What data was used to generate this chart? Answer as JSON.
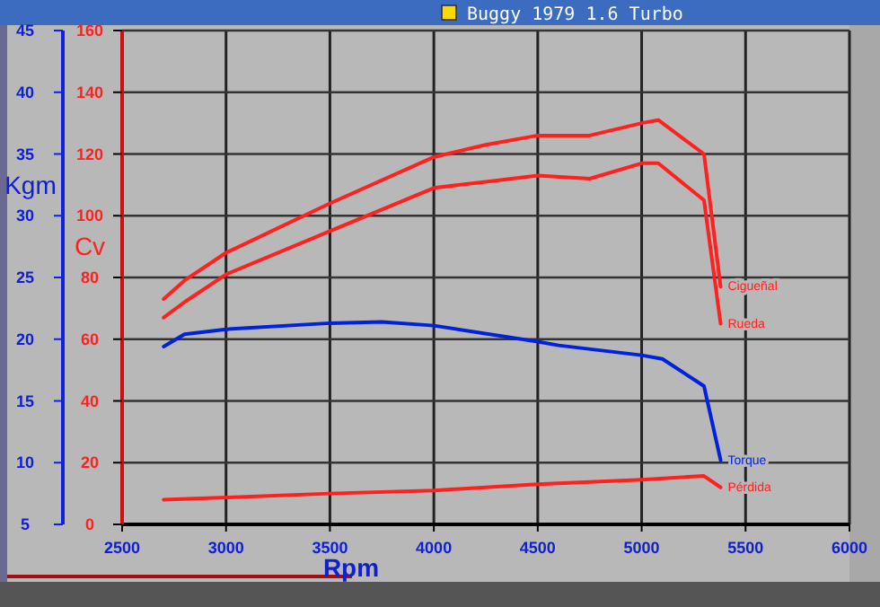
{
  "chart_data": {
    "type": "line",
    "title": "Buggy 1979 1.6 Turbo",
    "xlabel": "Rpm",
    "ylabel": "Kgm",
    "y2label": "Cv",
    "xlim": [
      2500,
      6000
    ],
    "xticks": [
      2500,
      3000,
      3500,
      4000,
      4500,
      5000,
      5500,
      6000
    ],
    "ylim": [
      5,
      45
    ],
    "yticks": [
      5,
      10,
      15,
      20,
      25,
      30,
      35,
      40,
      45
    ],
    "y2lim": [
      0,
      160
    ],
    "y2ticks": [
      0,
      20,
      40,
      60,
      80,
      100,
      120,
      140,
      160
    ],
    "grid": true,
    "marker": "none",
    "line_style": "solid",
    "series": [
      {
        "name": "Cigueñal",
        "color": "#ff2020",
        "axis": "y2",
        "x": [
          2700,
          2800,
          3000,
          3500,
          4000,
          4250,
          4500,
          4750,
          5000,
          5080,
          5300,
          5380
        ],
        "values": [
          73,
          79,
          88,
          104,
          119,
          123,
          126,
          126,
          130,
          131,
          120,
          77
        ]
      },
      {
        "name": "Rueda",
        "color": "#ff2020",
        "axis": "y2",
        "x": [
          2700,
          2800,
          3000,
          3500,
          4000,
          4250,
          4500,
          4750,
          5000,
          5080,
          5300,
          5380
        ],
        "values": [
          67,
          72,
          81,
          95,
          109,
          111,
          113,
          112,
          117,
          117,
          105,
          65
        ]
      },
      {
        "name": "Torque",
        "color": "#0022dd",
        "axis": "y",
        "x": [
          2700,
          2800,
          3000,
          3500,
          3750,
          4000,
          4500,
          4600,
          5000,
          5100,
          5300,
          5380
        ],
        "values": [
          19.4,
          20.4,
          20.8,
          21.3,
          21.4,
          21.1,
          19.8,
          19.5,
          18.7,
          18.4,
          16.2,
          10.2
        ]
      },
      {
        "name": "Pérdida",
        "color": "#ff2020",
        "axis": "y2",
        "x": [
          2700,
          3000,
          3500,
          4000,
          4500,
          5000,
          5300,
          5380
        ],
        "values": [
          8,
          8.7,
          10,
          11,
          13,
          14.5,
          15.7,
          12
        ]
      }
    ]
  }
}
